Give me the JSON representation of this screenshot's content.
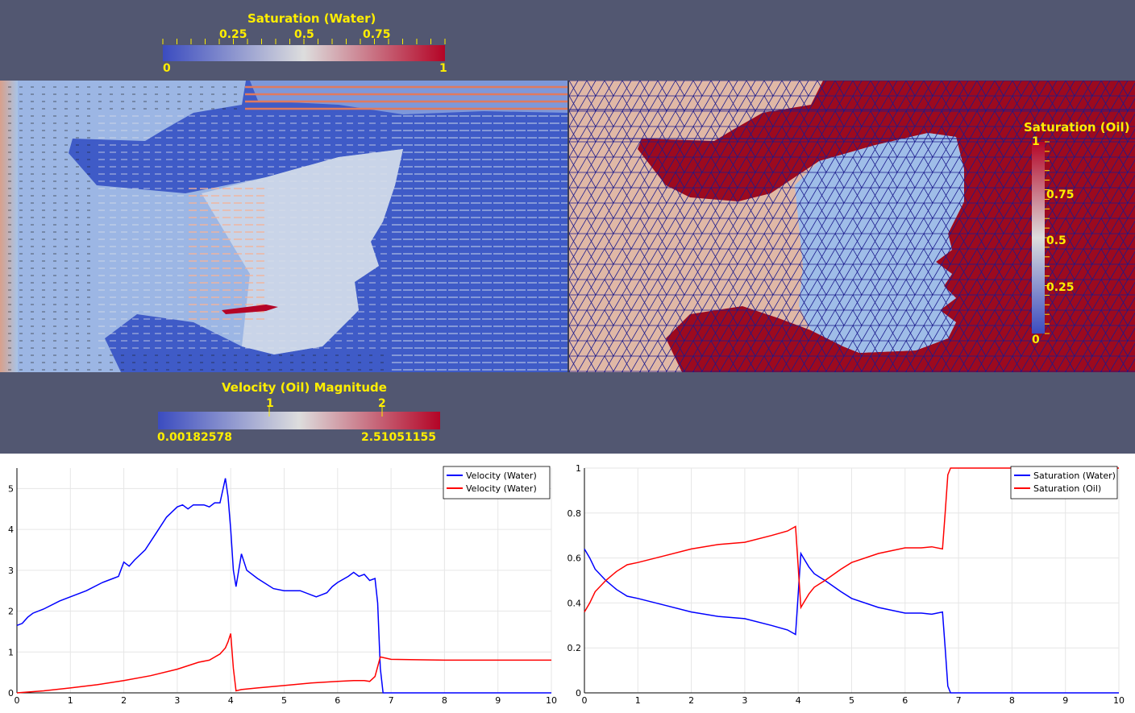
{
  "colorbars": {
    "water": {
      "title": "Saturation (Water)",
      "min_label": "0",
      "max_label": "1",
      "ticks": [
        "0.25",
        "0.5",
        "0.75"
      ]
    },
    "velocity": {
      "title": "Velocity (Oil) Magnitude",
      "min_label": "0.00182578",
      "max_label": "2.51051155",
      "ticks": [
        "1",
        "2"
      ]
    },
    "oil": {
      "title": "Saturation (Oil)",
      "min_label": "0",
      "max_label": "1",
      "ticks": [
        "0.25",
        "0.5",
        "0.75"
      ]
    }
  },
  "colors": {
    "background": "#525771",
    "label": "#ffee00",
    "cool": "#3b4cc0",
    "warm": "#b40426",
    "mesh": "#1a1a8c"
  },
  "chart_data": [
    {
      "type": "line",
      "xlim": [
        0,
        10
      ],
      "ylim": [
        0,
        5.5
      ],
      "xticks": [
        "0",
        "1",
        "2",
        "3",
        "4",
        "5",
        "6",
        "7",
        "8",
        "9",
        "10"
      ],
      "yticks": [
        "0",
        "1",
        "2",
        "3",
        "4",
        "5"
      ],
      "grid": true,
      "legend_position": "top-right",
      "series": [
        {
          "name": "Velocity (Water)",
          "color": "#0000ff",
          "x": [
            0,
            0.1,
            0.2,
            0.3,
            0.5,
            0.8,
            1.0,
            1.3,
            1.6,
            1.8,
            1.9,
            2.0,
            2.1,
            2.2,
            2.4,
            2.6,
            2.8,
            3.0,
            3.1,
            3.2,
            3.3,
            3.5,
            3.6,
            3.7,
            3.8,
            3.9,
            3.95,
            4.0,
            4.05,
            4.1,
            4.2,
            4.3,
            4.5,
            4.8,
            5.0,
            5.3,
            5.5,
            5.6,
            5.7,
            5.8,
            5.9,
            6.0,
            6.2,
            6.3,
            6.4,
            6.5,
            6.6,
            6.7,
            6.75,
            6.8,
            6.85,
            7.0,
            8.0,
            9.0,
            10.0
          ],
          "y": [
            1.65,
            1.7,
            1.85,
            1.95,
            2.05,
            2.25,
            2.35,
            2.5,
            2.7,
            2.8,
            2.85,
            3.2,
            3.1,
            3.25,
            3.5,
            3.9,
            4.3,
            4.55,
            4.6,
            4.5,
            4.6,
            4.6,
            4.55,
            4.65,
            4.65,
            5.25,
            4.8,
            4.0,
            3.0,
            2.6,
            3.4,
            3.0,
            2.8,
            2.55,
            2.5,
            2.5,
            2.4,
            2.35,
            2.4,
            2.45,
            2.6,
            2.7,
            2.85,
            2.95,
            2.85,
            2.9,
            2.75,
            2.8,
            2.2,
            0.6,
            0.0,
            0.0,
            0.0,
            0.0,
            0.0
          ]
        },
        {
          "name": "Velocity (Water)",
          "color": "#ff0000",
          "x": [
            0,
            0.5,
            1.0,
            1.5,
            2.0,
            2.5,
            3.0,
            3.4,
            3.6,
            3.8,
            3.9,
            3.95,
            4.0,
            4.05,
            4.1,
            4.2,
            4.5,
            5.0,
            5.5,
            6.0,
            6.3,
            6.5,
            6.6,
            6.7,
            6.8,
            7.0,
            8.0,
            9.0,
            10.0
          ],
          "y": [
            0,
            0.05,
            0.12,
            0.2,
            0.3,
            0.42,
            0.58,
            0.75,
            0.8,
            0.95,
            1.1,
            1.25,
            1.45,
            0.6,
            0.05,
            0.08,
            0.12,
            0.18,
            0.24,
            0.28,
            0.3,
            0.3,
            0.28,
            0.4,
            0.88,
            0.82,
            0.8,
            0.8,
            0.8
          ]
        }
      ]
    },
    {
      "type": "line",
      "xlim": [
        0,
        10
      ],
      "ylim": [
        0,
        1
      ],
      "xticks": [
        "0",
        "1",
        "2",
        "3",
        "4",
        "5",
        "6",
        "7",
        "8",
        "9",
        "10"
      ],
      "yticks": [
        "0",
        "0.2",
        "0.4",
        "0.6",
        "0.8",
        "1"
      ],
      "grid": true,
      "legend_position": "top-right",
      "series": [
        {
          "name": "Saturation (Water)",
          "color": "#0000ff",
          "x": [
            0,
            0.1,
            0.2,
            0.4,
            0.6,
            0.8,
            1.0,
            1.5,
            2.0,
            2.5,
            3.0,
            3.5,
            3.8,
            3.95,
            4.0,
            4.05,
            4.1,
            4.2,
            4.3,
            4.5,
            4.8,
            5.0,
            5.5,
            6.0,
            6.3,
            6.5,
            6.7,
            6.75,
            6.8,
            6.85,
            7.0,
            8.0,
            9.0,
            10.0
          ],
          "y": [
            0.64,
            0.6,
            0.55,
            0.5,
            0.46,
            0.43,
            0.42,
            0.39,
            0.36,
            0.34,
            0.33,
            0.3,
            0.28,
            0.26,
            0.44,
            0.62,
            0.6,
            0.56,
            0.53,
            0.5,
            0.45,
            0.42,
            0.38,
            0.355,
            0.355,
            0.35,
            0.36,
            0.2,
            0.03,
            0.0,
            0.0,
            0.0,
            0.0,
            0.0
          ]
        },
        {
          "name": "Saturation (Oil)",
          "color": "#ff0000",
          "x": [
            0,
            0.1,
            0.2,
            0.4,
            0.6,
            0.8,
            1.0,
            1.5,
            2.0,
            2.5,
            3.0,
            3.5,
            3.8,
            3.95,
            4.0,
            4.05,
            4.1,
            4.2,
            4.3,
            4.5,
            4.8,
            5.0,
            5.5,
            6.0,
            6.3,
            6.5,
            6.7,
            6.75,
            6.8,
            6.85,
            7.0,
            8.0,
            9.0,
            10.0
          ],
          "y": [
            0.36,
            0.4,
            0.45,
            0.5,
            0.54,
            0.57,
            0.58,
            0.61,
            0.64,
            0.66,
            0.67,
            0.7,
            0.72,
            0.74,
            0.56,
            0.38,
            0.4,
            0.44,
            0.47,
            0.5,
            0.55,
            0.58,
            0.62,
            0.645,
            0.645,
            0.65,
            0.64,
            0.8,
            0.97,
            1.0,
            1.0,
            1.0,
            1.0,
            1.0
          ]
        }
      ]
    }
  ]
}
